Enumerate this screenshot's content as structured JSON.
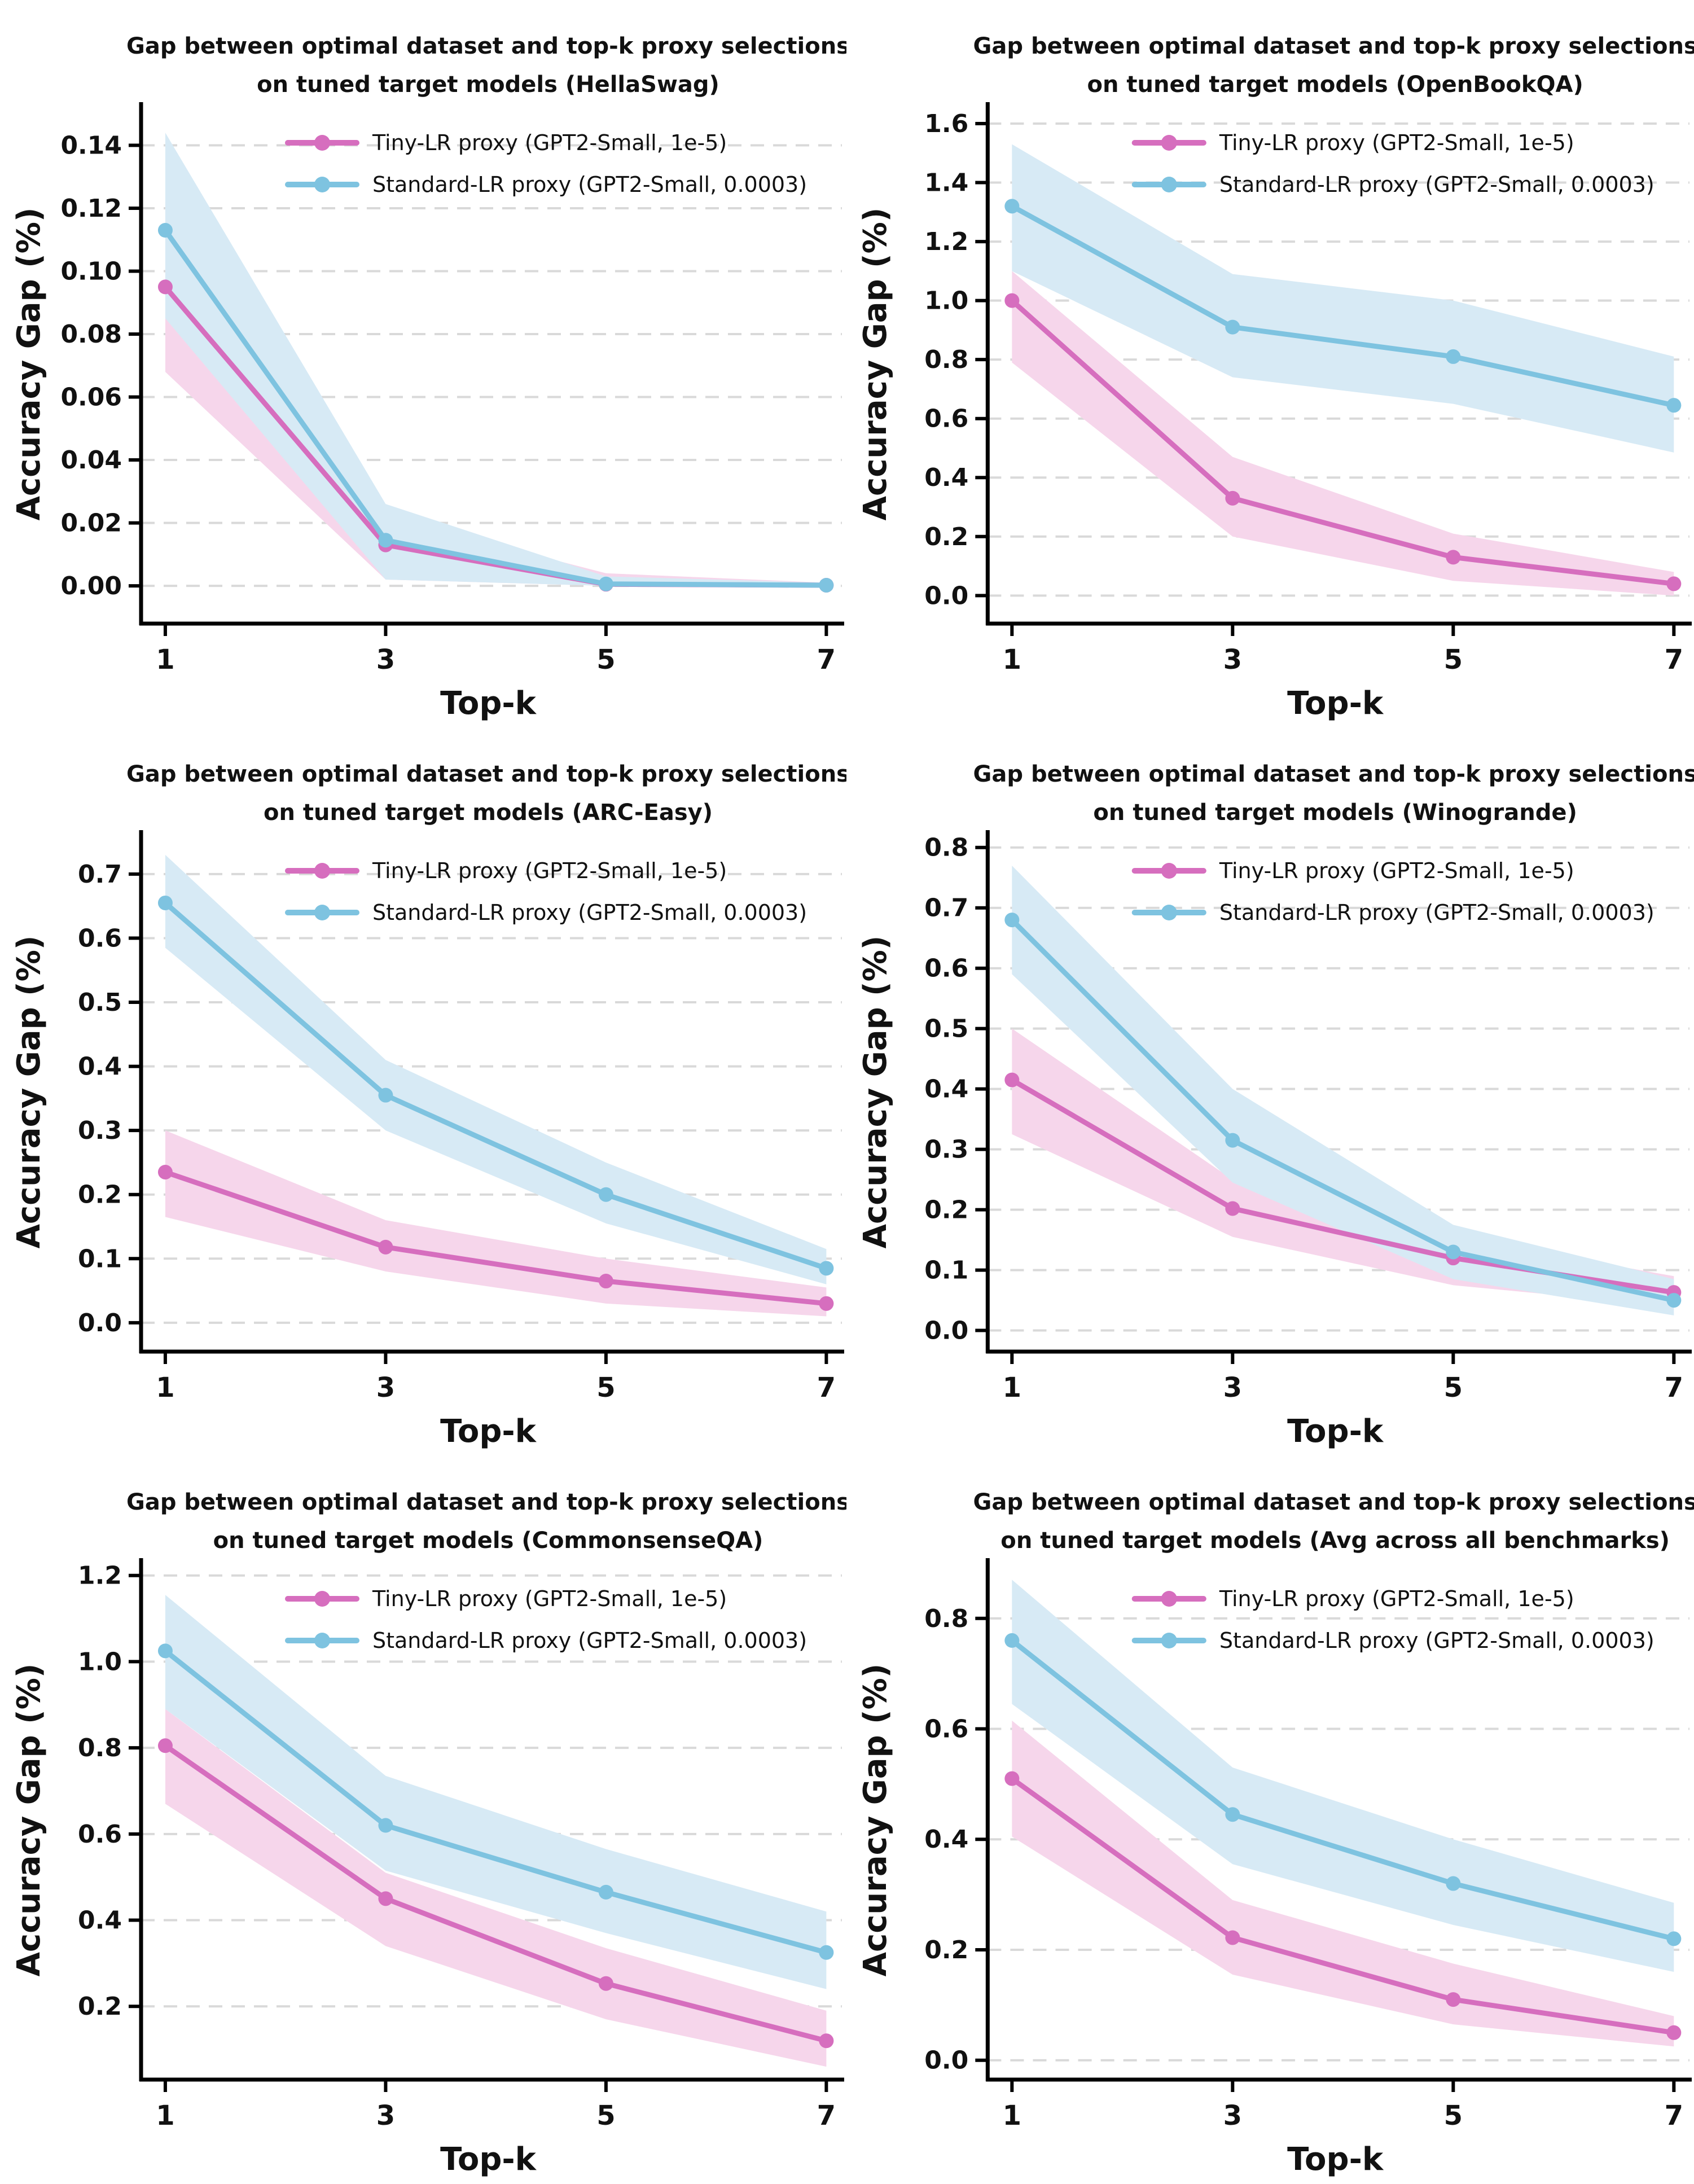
{
  "figure": {
    "background": "#ffffff",
    "layout": "2x3 grid of line charts",
    "shared_xlabel": "Top-k",
    "shared_ylabel": "Accuracy Gap (%)",
    "x_tick_values": [
      1,
      3,
      5,
      7
    ]
  },
  "colors": {
    "pink": "#D66EBE",
    "blue": "#7EC3E0",
    "pink_band": "#F6D6EB",
    "blue_band": "#D7EAF5",
    "grid": "#D9D9D9",
    "axis": "#000000",
    "text": "#111111"
  },
  "legend": {
    "position": "upper center inside plot, no box",
    "items": [
      {
        "key": "tiny-lr",
        "label": "Tiny-LR proxy (GPT2-Small, 1e-5)",
        "color_key": "pink"
      },
      {
        "key": "standard-lr",
        "label": "Standard-LR proxy (GPT2-Small, 0.0003)",
        "color_key": "blue"
      }
    ]
  },
  "chart_data": [
    {
      "type": "line",
      "id": "hellaswag",
      "title_line1": "Gap between optimal dataset and top-k proxy selections",
      "title_line2": "on tuned target models (HellaSwag)",
      "benchmark": "HellaSwag",
      "xlabel": "Top-k",
      "ylabel": "Accuracy Gap (%)",
      "x": [
        1,
        3,
        5,
        7
      ],
      "xtick_labels": [
        "1",
        "3",
        "5",
        "7"
      ],
      "ylim": [
        -0.012,
        0.153
      ],
      "yticks": [
        0.0,
        0.02,
        0.04,
        0.06,
        0.08,
        0.1,
        0.12,
        0.14
      ],
      "ytick_labels": [
        "0.00",
        "0.02",
        "0.04",
        "0.06",
        "0.08",
        "0.10",
        "0.12",
        "0.14"
      ],
      "grid": "horizontal dashed",
      "series": [
        {
          "key": "tiny-lr",
          "name": "Tiny-LR proxy (GPT2-Small, 1e-5)",
          "color_key": "pink",
          "values": [
            0.095,
            0.013,
            0.0005,
            0.0002
          ],
          "band_lower": [
            0.068,
            0.002,
            0.0,
            0.0
          ],
          "band_upper": [
            0.122,
            0.022,
            0.004,
            0.001
          ]
        },
        {
          "key": "standard-lr",
          "name": "Standard-LR proxy (GPT2-Small, 0.0003)",
          "color_key": "blue",
          "values": [
            0.113,
            0.0145,
            0.0006,
            0.0002
          ],
          "band_lower": [
            0.085,
            0.002,
            0.0,
            0.0
          ],
          "band_upper": [
            0.144,
            0.026,
            0.003,
            0.001
          ]
        }
      ]
    },
    {
      "type": "line",
      "id": "openbookqa",
      "title_line1": "Gap between optimal dataset and top-k proxy selections",
      "title_line2": "on tuned target models (OpenBookQA)",
      "benchmark": "OpenBookQA",
      "xlabel": "Top-k",
      "ylabel": "Accuracy Gap (%)",
      "x": [
        1,
        3,
        5,
        7
      ],
      "xtick_labels": [
        "1",
        "3",
        "5",
        "7"
      ],
      "ylim": [
        -0.095,
        1.665
      ],
      "yticks": [
        0.0,
        0.2,
        0.4,
        0.6,
        0.8,
        1.0,
        1.2,
        1.4,
        1.6
      ],
      "ytick_labels": [
        "0.0",
        "0.2",
        "0.4",
        "0.6",
        "0.8",
        "1.0",
        "1.2",
        "1.4",
        "1.6"
      ],
      "grid": "horizontal dashed",
      "series": [
        {
          "key": "tiny-lr",
          "name": "Tiny-LR proxy (GPT2-Small, 1e-5)",
          "color_key": "pink",
          "values": [
            1.0,
            0.33,
            0.13,
            0.04
          ],
          "band_lower": [
            0.79,
            0.2,
            0.05,
            0.0
          ],
          "band_upper": [
            1.1,
            0.47,
            0.21,
            0.08
          ]
        },
        {
          "key": "standard-lr",
          "name": "Standard-LR proxy (GPT2-Small, 0.0003)",
          "color_key": "blue",
          "values": [
            1.32,
            0.91,
            0.81,
            0.645
          ],
          "band_lower": [
            1.1,
            0.74,
            0.65,
            0.485
          ],
          "band_upper": [
            1.53,
            1.09,
            1.0,
            0.81
          ]
        }
      ]
    },
    {
      "type": "line",
      "id": "arc-easy",
      "title_line1": "Gap between optimal dataset and top-k proxy selections",
      "title_line2": "on tuned target models (ARC-Easy)",
      "benchmark": "ARC-Easy",
      "xlabel": "Top-k",
      "ylabel": "Accuracy Gap (%)",
      "x": [
        1,
        3,
        5,
        7
      ],
      "xtick_labels": [
        "1",
        "3",
        "5",
        "7"
      ],
      "ylim": [
        -0.045,
        0.765
      ],
      "yticks": [
        0.0,
        0.1,
        0.2,
        0.3,
        0.4,
        0.5,
        0.6,
        0.7
      ],
      "ytick_labels": [
        "0.0",
        "0.1",
        "0.2",
        "0.3",
        "0.4",
        "0.5",
        "0.6",
        "0.7"
      ],
      "grid": "horizontal dashed",
      "series": [
        {
          "key": "tiny-lr",
          "name": "Tiny-LR proxy (GPT2-Small, 1e-5)",
          "color_key": "pink",
          "values": [
            0.235,
            0.118,
            0.065,
            0.03
          ],
          "band_lower": [
            0.165,
            0.08,
            0.03,
            0.01
          ],
          "band_upper": [
            0.3,
            0.16,
            0.1,
            0.055
          ]
        },
        {
          "key": "standard-lr",
          "name": "Standard-LR proxy (GPT2-Small, 0.0003)",
          "color_key": "blue",
          "values": [
            0.655,
            0.355,
            0.2,
            0.085
          ],
          "band_lower": [
            0.585,
            0.3,
            0.155,
            0.06
          ],
          "band_upper": [
            0.73,
            0.41,
            0.25,
            0.115
          ]
        }
      ]
    },
    {
      "type": "line",
      "id": "winogrande",
      "title_line1": "Gap between optimal dataset and top-k proxy selections",
      "title_line2": "on tuned target models (Winogrande)",
      "benchmark": "Winogrande",
      "xlabel": "Top-k",
      "ylabel": "Accuracy Gap (%)",
      "x": [
        1,
        3,
        5,
        7
      ],
      "xtick_labels": [
        "1",
        "3",
        "5",
        "7"
      ],
      "ylim": [
        -0.035,
        0.825
      ],
      "yticks": [
        0.0,
        0.1,
        0.2,
        0.3,
        0.4,
        0.5,
        0.6,
        0.7,
        0.8
      ],
      "ytick_labels": [
        "0.0",
        "0.1",
        "0.2",
        "0.3",
        "0.4",
        "0.5",
        "0.6",
        "0.7",
        "0.8"
      ],
      "grid": "horizontal dashed",
      "series": [
        {
          "key": "tiny-lr",
          "name": "Tiny-LR proxy (GPT2-Small, 1e-5)",
          "color_key": "pink",
          "values": [
            0.415,
            0.202,
            0.12,
            0.063
          ],
          "band_lower": [
            0.325,
            0.155,
            0.075,
            0.04
          ],
          "band_upper": [
            0.5,
            0.25,
            0.155,
            0.09
          ]
        },
        {
          "key": "standard-lr",
          "name": "Standard-LR proxy (GPT2-Small, 0.0003)",
          "color_key": "blue",
          "values": [
            0.68,
            0.315,
            0.13,
            0.05
          ],
          "band_lower": [
            0.59,
            0.245,
            0.085,
            0.025
          ],
          "band_upper": [
            0.77,
            0.4,
            0.175,
            0.085
          ]
        }
      ]
    },
    {
      "type": "line",
      "id": "commonsenseqa",
      "title_line1": "Gap between optimal dataset and top-k proxy selections",
      "title_line2": "on tuned target models (CommonsenseQA)",
      "benchmark": "CommonsenseQA",
      "xlabel": "Top-k",
      "ylabel": "Accuracy Gap (%)",
      "x": [
        1,
        3,
        5,
        7
      ],
      "xtick_labels": [
        "1",
        "3",
        "5",
        "7"
      ],
      "ylim": [
        0.03,
        1.235
      ],
      "yticks": [
        0.2,
        0.4,
        0.6,
        0.8,
        1.0,
        1.2
      ],
      "ytick_labels": [
        "0.2",
        "0.4",
        "0.6",
        "0.8",
        "1.0",
        "1.2"
      ],
      "grid": "horizontal dashed",
      "series": [
        {
          "key": "tiny-lr",
          "name": "Tiny-LR proxy (GPT2-Small, 1e-5)",
          "color_key": "pink",
          "values": [
            0.805,
            0.45,
            0.253,
            0.12
          ],
          "band_lower": [
            0.67,
            0.34,
            0.17,
            0.06
          ],
          "band_upper": [
            0.89,
            0.51,
            0.335,
            0.19
          ]
        },
        {
          "key": "standard-lr",
          "name": "Standard-LR proxy (GPT2-Small, 0.0003)",
          "color_key": "blue",
          "values": [
            1.025,
            0.62,
            0.465,
            0.325
          ],
          "band_lower": [
            0.89,
            0.515,
            0.37,
            0.24
          ],
          "band_upper": [
            1.155,
            0.735,
            0.565,
            0.42
          ]
        }
      ]
    },
    {
      "type": "line",
      "id": "avg-all-benchmarks",
      "title_line1": "Gap between optimal dataset and top-k proxy selections",
      "title_line2": "on tuned target models (Avg across all benchmarks)",
      "benchmark": "Avg across all benchmarks",
      "xlabel": "Top-k",
      "ylabel": "Accuracy Gap (%)",
      "x": [
        1,
        3,
        5,
        7
      ],
      "xtick_labels": [
        "1",
        "3",
        "5",
        "7"
      ],
      "ylim": [
        -0.035,
        0.905
      ],
      "yticks": [
        0.0,
        0.2,
        0.4,
        0.6,
        0.8
      ],
      "ytick_labels": [
        "0.0",
        "0.2",
        "0.4",
        "0.6",
        "0.8"
      ],
      "grid": "horizontal dashed",
      "series": [
        {
          "key": "tiny-lr",
          "name": "Tiny-LR proxy (GPT2-Small, 1e-5)",
          "color_key": "pink",
          "values": [
            0.51,
            0.222,
            0.11,
            0.05
          ],
          "band_lower": [
            0.405,
            0.155,
            0.065,
            0.025
          ],
          "band_upper": [
            0.615,
            0.29,
            0.175,
            0.08
          ]
        },
        {
          "key": "standard-lr",
          "name": "Standard-LR proxy (GPT2-Small, 0.0003)",
          "color_key": "blue",
          "values": [
            0.76,
            0.445,
            0.32,
            0.22
          ],
          "band_lower": [
            0.645,
            0.355,
            0.245,
            0.16
          ],
          "band_upper": [
            0.87,
            0.53,
            0.4,
            0.285
          ]
        }
      ]
    }
  ]
}
